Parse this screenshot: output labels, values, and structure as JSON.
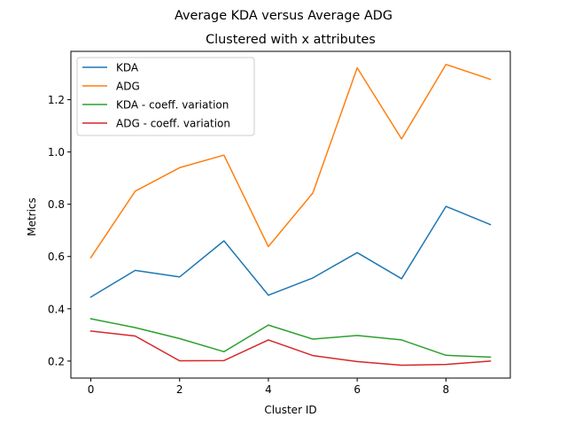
{
  "figure_title": "Average KDA versus Average ADG",
  "chart_data": {
    "type": "line",
    "title": "Clustered with x attributes",
    "xlabel": "Cluster ID",
    "ylabel": "Metrics",
    "x": [
      0,
      1,
      2,
      3,
      4,
      5,
      6,
      7,
      8,
      9
    ],
    "xlim": [
      -0.45,
      9.45
    ],
    "ylim": [
      0.135,
      1.385
    ],
    "xticks": [
      0,
      2,
      4,
      6,
      8
    ],
    "yticks": [
      0.2,
      0.4,
      0.6,
      0.8,
      1.0,
      1.2
    ],
    "xtick_labels": [
      "0",
      "2",
      "4",
      "6",
      "8"
    ],
    "ytick_labels": [
      "0.2",
      "0.4",
      "0.6",
      "0.8",
      "1.0",
      "1.2"
    ],
    "grid": false,
    "legend_position": "top-left",
    "series": [
      {
        "name": "KDA",
        "color": "#1f77b4",
        "values": [
          0.445,
          0.547,
          0.522,
          0.66,
          0.452,
          0.518,
          0.615,
          0.515,
          0.792,
          0.722
        ]
      },
      {
        "name": "ADG",
        "color": "#ff7f0e",
        "values": [
          0.596,
          0.85,
          0.94,
          0.988,
          0.638,
          0.843,
          1.322,
          1.05,
          1.335,
          1.278
        ]
      },
      {
        "name": "KDA - coeff. variation",
        "color": "#2ca02c",
        "values": [
          0.362,
          0.328,
          0.286,
          0.236,
          0.338,
          0.284,
          0.298,
          0.281,
          0.222,
          0.215
        ]
      },
      {
        "name": "ADG - coeff. variation",
        "color": "#d62728",
        "values": [
          0.315,
          0.296,
          0.201,
          0.202,
          0.281,
          0.221,
          0.198,
          0.184,
          0.187,
          0.2
        ]
      }
    ]
  }
}
